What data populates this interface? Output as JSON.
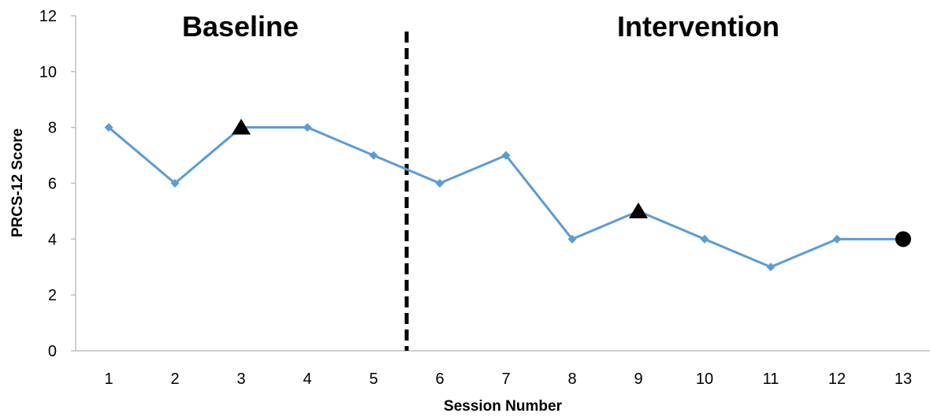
{
  "chart_data": {
    "type": "line",
    "title": "",
    "xlabel": "Session Number",
    "ylabel": "PRCS-12 Score",
    "categories": [
      "1",
      "2",
      "3",
      "4",
      "5",
      "6",
      "7",
      "8",
      "9",
      "10",
      "11",
      "12",
      "13"
    ],
    "x": [
      1,
      2,
      3,
      4,
      5,
      6,
      7,
      8,
      9,
      10,
      11,
      12,
      13
    ],
    "series": [
      {
        "values": [
          8,
          6,
          8,
          8,
          7,
          6,
          7,
          4,
          5,
          4,
          3,
          4,
          4
        ],
        "color": "#5b9bd5",
        "marker": "diamond"
      }
    ],
    "special_markers": [
      {
        "x": 3,
        "y": 8,
        "shape": "triangle",
        "color": "#000000"
      },
      {
        "x": 9,
        "y": 5,
        "shape": "triangle",
        "color": "#000000"
      },
      {
        "x": 13,
        "y": 4,
        "shape": "circle",
        "color": "#000000"
      }
    ],
    "ylim": [
      0,
      12
    ],
    "yticks": [
      0,
      2,
      4,
      6,
      8,
      10,
      12
    ],
    "grid": false,
    "legend": "none",
    "phase_change": {
      "x": 5.5,
      "style": "dashed",
      "color": "#000000"
    },
    "phase_labels": [
      {
        "text": "Baseline"
      },
      {
        "text": "Intervention"
      }
    ],
    "axis_color": "#bfbfbf"
  }
}
